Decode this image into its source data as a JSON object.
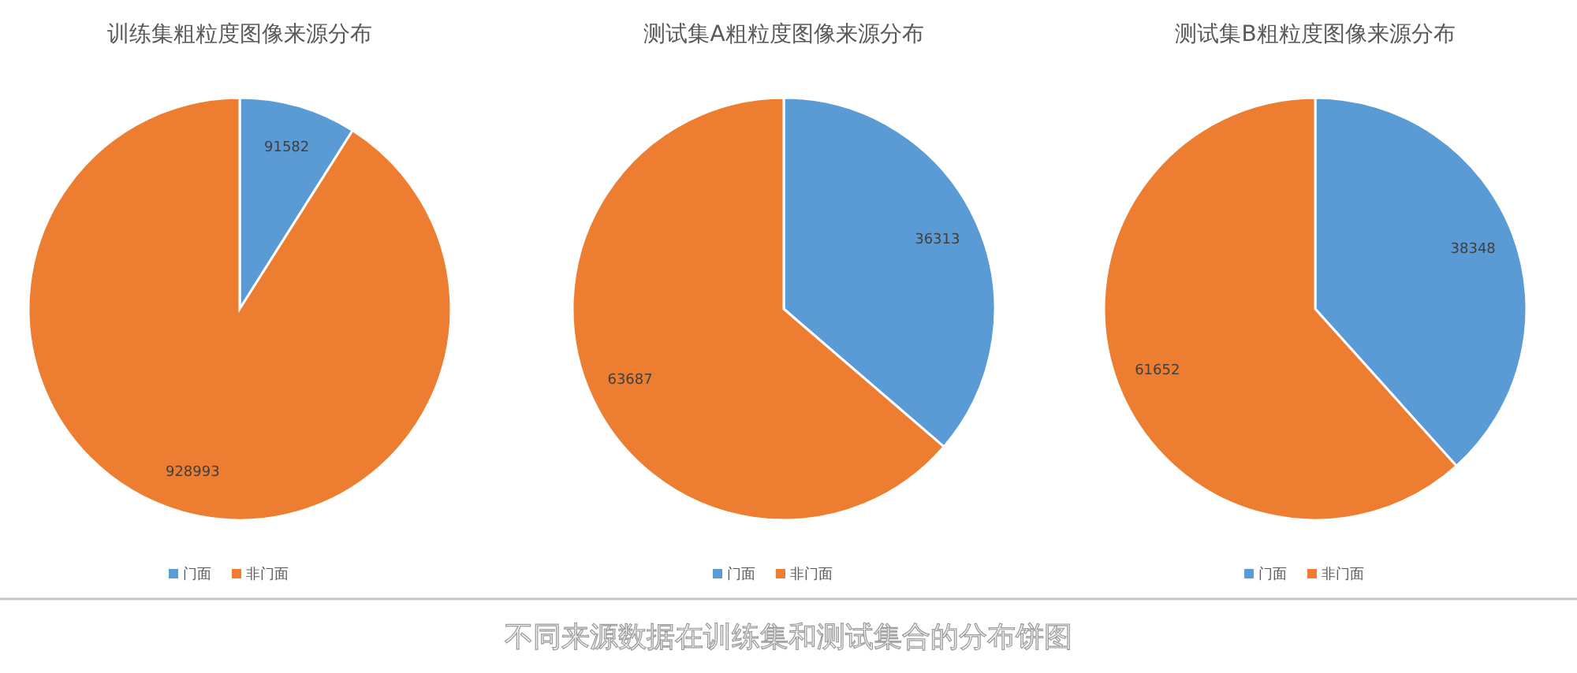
{
  "chart_data": [
    {
      "type": "pie",
      "title": "训练集粗粒度图像来源分布",
      "categories": [
        "门面",
        "非门面"
      ],
      "values": [
        91582,
        928993
      ],
      "colors": [
        "#5b9bd5",
        "#ed7d31"
      ],
      "data_labels": true,
      "legend": "bottom"
    },
    {
      "type": "pie",
      "title": "测试集A粗粒度图像来源分布",
      "categories": [
        "门面",
        "非门面"
      ],
      "values": [
        36313,
        63687
      ],
      "colors": [
        "#5b9bd5",
        "#ed7d31"
      ],
      "data_labels": true,
      "legend": "bottom"
    },
    {
      "type": "pie",
      "title": "测试集B粗粒度图像来源分布",
      "categories": [
        "门面",
        "非门面"
      ],
      "values": [
        38348,
        61652
      ],
      "colors": [
        "#5b9bd5",
        "#ed7d31"
      ],
      "data_labels": true,
      "legend": "bottom"
    },
    {
      "type": "other",
      "annotations": [
        "不同来源数据在训练集和测试集合的分布饼图"
      ]
    }
  ]
}
